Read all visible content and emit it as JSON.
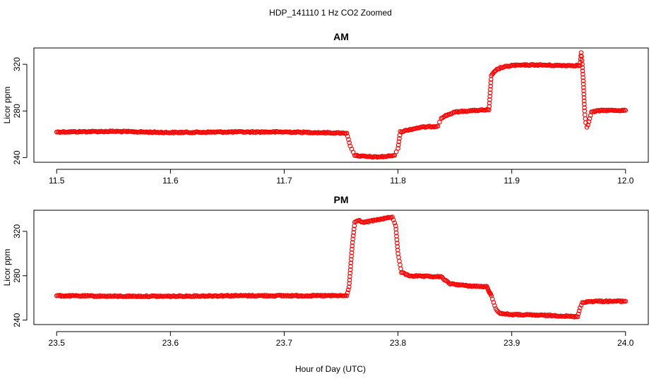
{
  "figure": {
    "title": "HDP_141110  1 Hz CO2 Zoomed",
    "xlabel": "Hour of Day (UTC)"
  },
  "colors": {
    "series": "#ff0000",
    "axis": "#000000",
    "background": "#ffffff"
  },
  "chart_data": [
    {
      "type": "scatter",
      "title": "AM",
      "xlabel": "",
      "ylabel": "Licor ppm",
      "xlim": [
        11.5,
        12.0
      ],
      "ylim": [
        236,
        334
      ],
      "xticks": [
        11.5,
        11.6,
        11.7,
        11.8,
        11.9,
        12.0
      ],
      "xtick_labels": [
        "11.5",
        "11.6",
        "11.7",
        "11.8",
        "11.9",
        "12.0"
      ],
      "yticks": [
        240,
        280,
        320
      ],
      "ytick_labels": [
        "240",
        "280",
        "320"
      ],
      "grid": false,
      "marker": "open-circle",
      "series": [
        {
          "x": [
            11.5,
            11.55,
            11.6,
            11.65,
            11.7,
            11.755,
            11.758,
            11.762,
            11.77,
            11.78,
            11.79,
            11.797,
            11.8,
            11.802,
            11.81,
            11.82,
            11.835,
            11.838,
            11.842,
            11.85,
            11.86,
            11.88,
            11.882,
            11.886,
            11.89,
            11.9,
            11.92,
            11.94,
            11.96,
            11.961,
            11.962,
            11.963,
            11.964,
            11.965,
            11.966,
            11.967,
            11.97,
            11.975,
            11.98,
            12.0
          ],
          "y": [
            262,
            262.5,
            261.5,
            262,
            262,
            261,
            250,
            242,
            241,
            240.5,
            241,
            242,
            248,
            262,
            264,
            266,
            267,
            274,
            276,
            279,
            280,
            281,
            310,
            315,
            317,
            319,
            319.5,
            319,
            319,
            330,
            320,
            303,
            280,
            270,
            266,
            268,
            279,
            280,
            280.5,
            280.5
          ]
        }
      ]
    },
    {
      "type": "scatter",
      "title": "PM",
      "xlabel": "Hour of Day (UTC)",
      "ylabel": "Licor ppm",
      "xlim": [
        23.5,
        24.0
      ],
      "ylim": [
        236,
        339
      ],
      "xticks": [
        23.5,
        23.6,
        23.7,
        23.8,
        23.9,
        24.0
      ],
      "xtick_labels": [
        "23.5",
        "23.6",
        "23.7",
        "23.8",
        "23.9",
        "24.0"
      ],
      "yticks": [
        240,
        280,
        320
      ],
      "ytick_labels": [
        "240",
        "280",
        "320"
      ],
      "grid": false,
      "marker": "open-circle",
      "series": [
        {
          "x": [
            23.5,
            23.55,
            23.6,
            23.65,
            23.7,
            23.755,
            23.757,
            23.76,
            23.762,
            23.765,
            23.77,
            23.78,
            23.795,
            23.798,
            23.8,
            23.803,
            23.81,
            23.82,
            23.838,
            23.845,
            23.86,
            23.878,
            23.882,
            23.886,
            23.89,
            23.9,
            23.92,
            23.94,
            23.958,
            23.96,
            23.962,
            23.97,
            24.0
          ],
          "y": [
            262,
            261.5,
            261.5,
            262,
            262,
            262,
            270,
            310,
            328,
            330,
            328,
            330,
            333,
            325,
            300,
            283,
            280,
            279.5,
            279,
            273,
            271,
            270,
            262,
            250,
            246,
            245,
            244.5,
            244,
            243,
            251,
            256,
            257,
            257
          ]
        }
      ]
    }
  ]
}
